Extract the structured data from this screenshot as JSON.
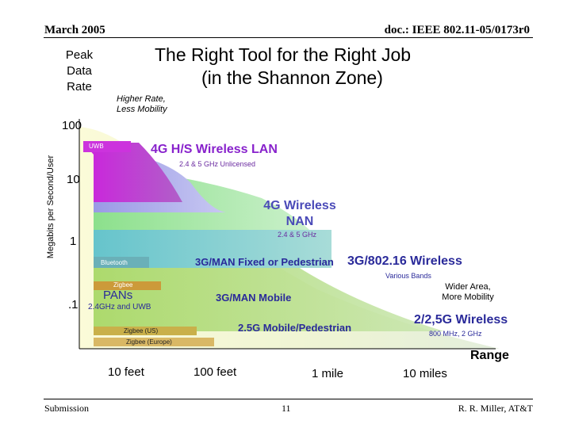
{
  "header": {
    "date": "March 2005",
    "doc": "doc.: IEEE 802.11-05/0173r0"
  },
  "title": {
    "line1": "The Right Tool for the Right Job",
    "line2": "(in the Shannon Zone)"
  },
  "y_axis": {
    "heading_lines": [
      "Peak",
      "Data",
      "Rate"
    ],
    "label": "Megabits per Second/User",
    "ticks": [
      "100",
      "10",
      "1",
      ".1"
    ]
  },
  "x_axis": {
    "label": "Range",
    "ticks": [
      "10 feet",
      "100 feet",
      "1 mile",
      "10 miles"
    ]
  },
  "annotations": {
    "higher_rate_line1": "Higher Rate,",
    "higher_rate_line2": "Less Mobility",
    "wider_area_line1": "Wider Area,",
    "wider_area_line2": "More Mobility"
  },
  "regions": {
    "uwb": "UWB",
    "hs_lan": "4G H/S Wireless LAN",
    "hs_lan_band": "2.4 & 5 GHz Unlicensed",
    "nan_line1": "4G Wireless",
    "nan_line2": "NAN",
    "nan_band": "2.4 & 5 GHz",
    "bluetooth": "Bluetooth",
    "man_fixed": "3G/MAN Fixed or Pedestrian",
    "wireless_802_16": "3G/802.16 Wireless",
    "various_bands": "Various Bands",
    "zigbee": "Zigbee",
    "pans": "PANs",
    "pans_band": "2.4GHz and UWB",
    "man_mobile": "3G/MAN Mobile",
    "pedestrian_25g": "2.5G Mobile/Pedestrian",
    "wireless_2g": "2/2,5G Wireless",
    "wireless_2g_band": "800 MHz, 2 GHz",
    "zigbee_us": "Zigbee (US)",
    "zigbee_europe": "Zigbee (Europe)"
  },
  "footer": {
    "left": "Submission",
    "page": "11",
    "author": "R. R. Miller, AT&T"
  }
}
